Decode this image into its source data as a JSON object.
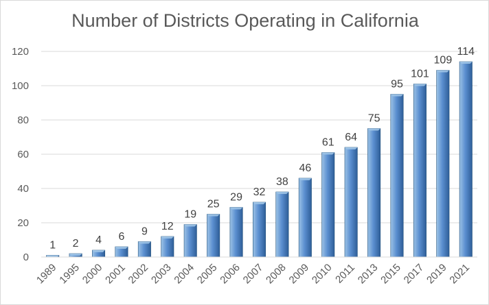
{
  "chart_data": {
    "type": "bar",
    "title": "Number of Districts Operating in California",
    "xlabel": "",
    "ylabel": "",
    "categories": [
      "1989",
      "1995",
      "2000",
      "2001",
      "2002",
      "2003",
      "2004",
      "2005",
      "2006",
      "2007",
      "2008",
      "2009",
      "2010",
      "2011",
      "2013",
      "2015",
      "2017",
      "2019",
      "2021"
    ],
    "values": [
      1,
      2,
      4,
      6,
      9,
      12,
      19,
      25,
      29,
      32,
      38,
      46,
      61,
      64,
      75,
      95,
      101,
      109,
      114
    ],
    "ylim": [
      0,
      120
    ],
    "yticks": [
      0,
      20,
      40,
      60,
      80,
      100,
      120
    ],
    "grid": true,
    "legend": "none",
    "colors": {
      "bar_light": "#9dc3e6",
      "bar_dark": "#2e5e98",
      "bar_edge": "#1f4e79",
      "grid": "#d9d9d9",
      "text": "#595959"
    }
  }
}
